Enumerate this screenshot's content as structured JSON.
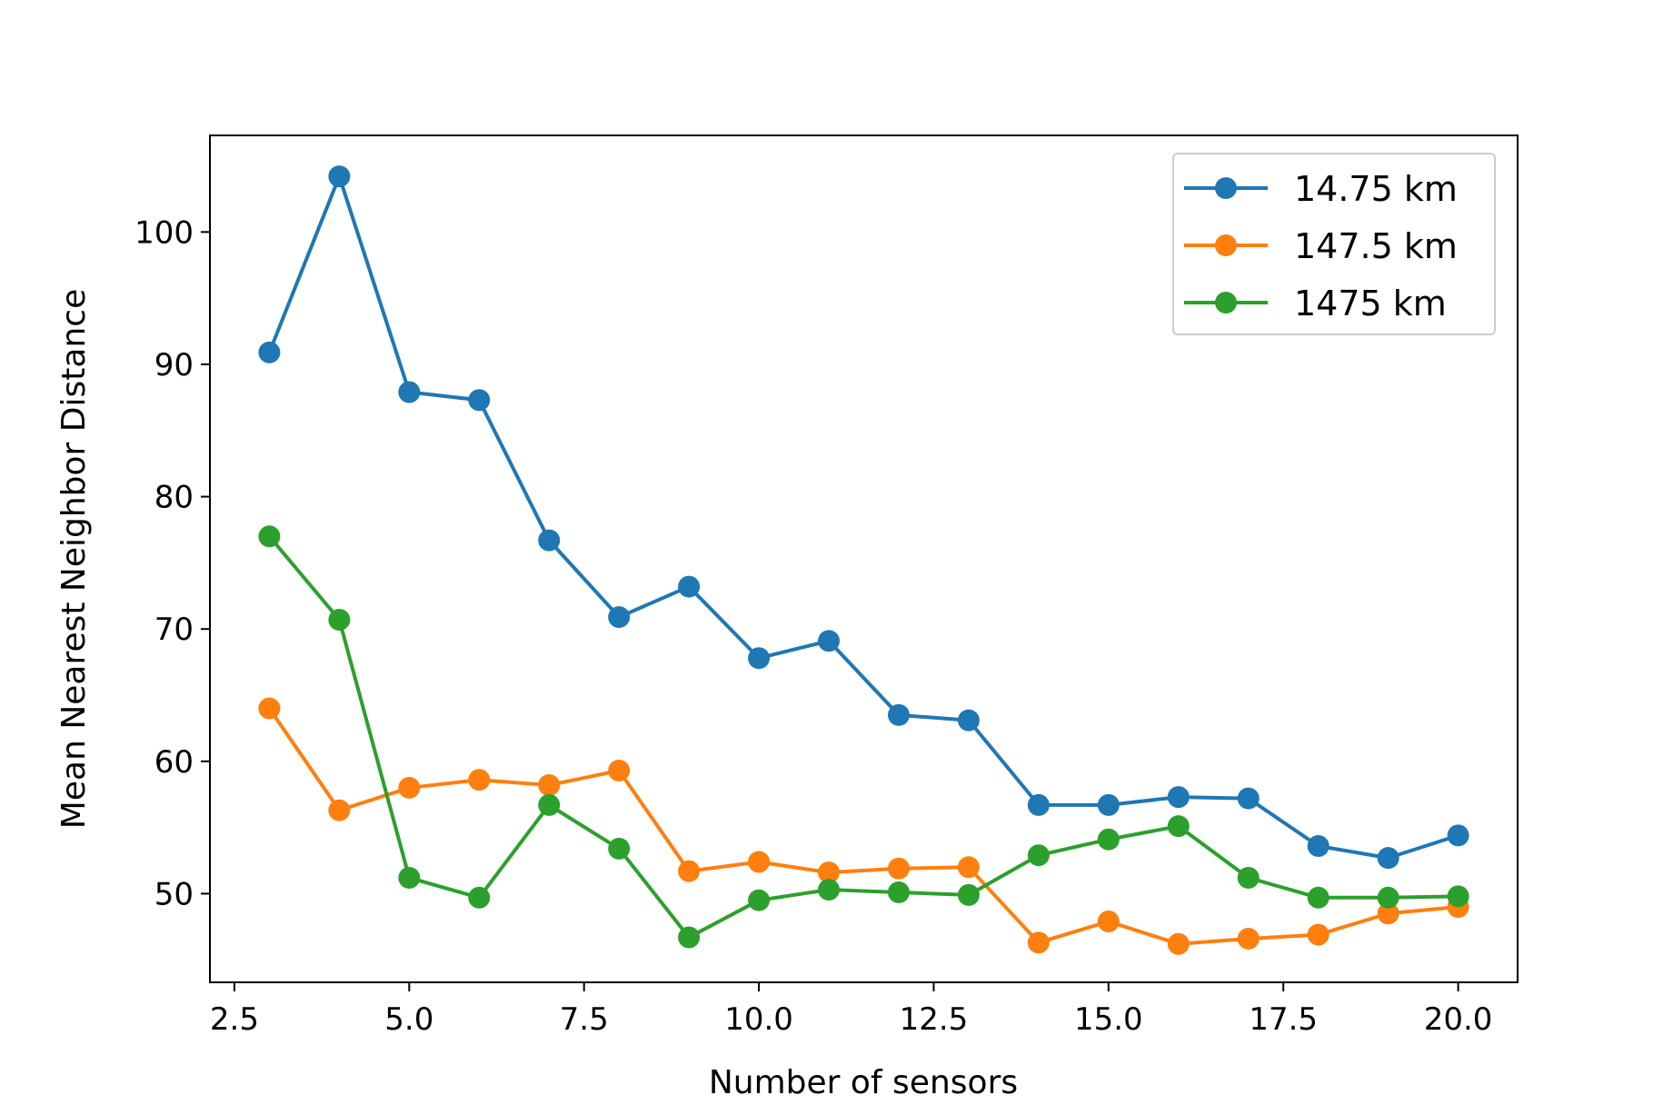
{
  "chart_data": {
    "type": "line",
    "title": "",
    "xlabel": "Number of sensors",
    "ylabel": "Mean Nearest Neighbor Distance",
    "xlim": [
      2.15,
      20.85
    ],
    "ylim": [
      43.3,
      107.3
    ],
    "xticks": [
      2.5,
      5.0,
      7.5,
      10.0,
      12.5,
      15.0,
      17.5,
      20.0
    ],
    "xtick_labels": [
      "2.5",
      "5.0",
      "7.5",
      "10.0",
      "12.5",
      "15.0",
      "17.5",
      "20.0"
    ],
    "yticks": [
      50,
      60,
      70,
      80,
      90,
      100
    ],
    "ytick_labels": [
      "50",
      "60",
      "70",
      "80",
      "90",
      "100"
    ],
    "grid": false,
    "legend_position": "top-right",
    "x": [
      3,
      4,
      5,
      6,
      7,
      8,
      9,
      10,
      11,
      12,
      13,
      14,
      15,
      16,
      17,
      18,
      19,
      20
    ],
    "series": [
      {
        "name": "14.75 km",
        "color": "#1f77b4",
        "values": [
          90.9,
          104.2,
          87.9,
          87.3,
          76.7,
          70.9,
          73.2,
          67.8,
          69.1,
          63.5,
          63.1,
          56.7,
          56.7,
          57.3,
          57.2,
          53.6,
          52.7,
          54.4
        ]
      },
      {
        "name": "147.5 km",
        "color": "#ff7f0e",
        "values": [
          64.0,
          56.3,
          58.0,
          58.6,
          58.2,
          59.3,
          51.7,
          52.4,
          51.6,
          51.9,
          52.0,
          46.3,
          47.9,
          46.2,
          46.6,
          46.9,
          48.5,
          49.0
        ]
      },
      {
        "name": "1475 km",
        "color": "#2ca02c",
        "values": [
          77.0,
          70.7,
          51.2,
          49.7,
          56.7,
          53.4,
          46.7,
          49.5,
          50.3,
          50.1,
          49.9,
          52.9,
          54.1,
          55.1,
          51.2,
          49.7,
          49.7,
          49.8
        ]
      }
    ]
  }
}
